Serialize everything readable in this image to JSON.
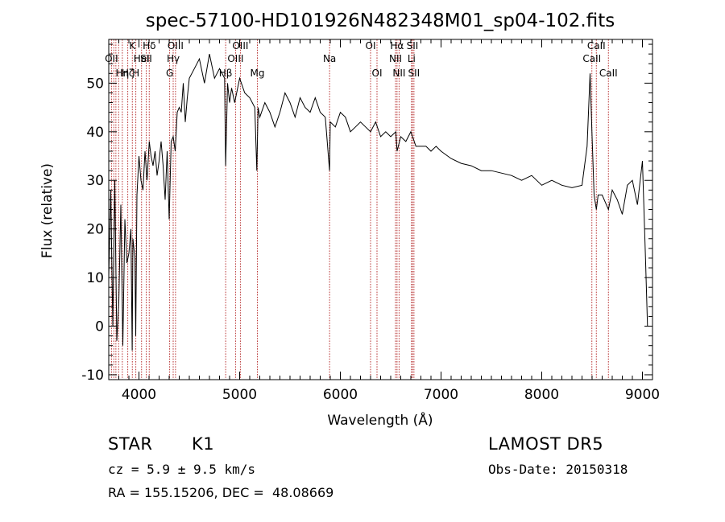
{
  "chart_data": {
    "type": "line",
    "title": "spec-57100-HD101926N482348M01_sp04-102.fits",
    "xlabel": "Wavelength (Å)",
    "ylabel": "Flux (relative)",
    "xlim": [
      3700,
      9100
    ],
    "ylim": [
      -11,
      59
    ],
    "x_ticks": [
      4000,
      5000,
      6000,
      7000,
      8000,
      9000
    ],
    "y_ticks": [
      -10,
      0,
      10,
      20,
      30,
      40,
      50
    ],
    "grid": false,
    "series": [
      {
        "x": [
          3700,
          3720,
          3740,
          3760,
          3780,
          3800,
          3820,
          3840,
          3860,
          3880,
          3900,
          3920,
          3933,
          3940,
          3960,
          3968,
          3980,
          4000,
          4020,
          4040,
          4060,
          4080,
          4102,
          4120,
          4140,
          4160,
          4180,
          4200,
          4220,
          4240,
          4260,
          4280,
          4300,
          4320,
          4340,
          4360,
          4380,
          4400,
          4420,
          4440,
          4460,
          4480,
          4500,
          4550,
          4600,
          4650,
          4700,
          4750,
          4800,
          4850,
          4861,
          4880,
          4900,
          4920,
          4950,
          5000,
          5050,
          5100,
          5150,
          5170,
          5183,
          5200,
          5250,
          5300,
          5350,
          5400,
          5450,
          5500,
          5550,
          5600,
          5650,
          5700,
          5750,
          5800,
          5850,
          5893,
          5900,
          5950,
          6000,
          6050,
          6100,
          6150,
          6200,
          6250,
          6300,
          6350,
          6400,
          6450,
          6500,
          6550,
          6563,
          6600,
          6650,
          6700,
          6750,
          6800,
          6850,
          6900,
          6950,
          7000,
          7100,
          7200,
          7300,
          7400,
          7500,
          7600,
          7700,
          7800,
          7900,
          8000,
          8100,
          8200,
          8300,
          8400,
          8450,
          8480,
          8498,
          8520,
          8542,
          8560,
          8600,
          8662,
          8700,
          8750,
          8800,
          8850,
          8900,
          8950,
          9000,
          9030,
          9050
        ],
        "y": [
          10,
          28,
          0,
          30,
          -3,
          5,
          25,
          -4,
          22,
          13,
          15,
          20,
          -5,
          18,
          14,
          -2,
          27,
          35,
          30,
          28,
          36,
          30,
          38,
          35,
          33,
          36,
          31,
          34,
          38,
          33,
          26,
          36,
          22,
          38,
          39,
          36,
          44,
          45,
          44,
          50,
          42,
          47,
          51,
          53,
          55,
          50,
          56,
          51,
          53,
          51,
          33,
          50,
          46,
          49,
          46,
          51,
          48,
          47,
          45,
          32,
          45,
          43,
          46,
          44,
          41,
          44,
          48,
          46,
          43,
          47,
          45,
          44,
          47,
          44,
          43,
          32,
          42,
          41,
          44,
          43,
          40,
          41,
          42,
          41,
          40,
          42,
          39,
          40,
          39,
          40,
          36,
          39,
          38,
          40,
          37,
          37,
          37,
          36,
          37,
          36,
          34.5,
          33.5,
          33,
          32,
          32,
          31.5,
          31,
          30,
          31,
          29,
          30,
          29,
          28.5,
          29,
          37,
          52,
          40,
          27,
          24,
          27,
          27,
          24,
          28,
          26,
          23,
          29,
          30,
          25,
          34,
          14,
          0
        ]
      }
    ],
    "lines": [
      {
        "wl": 3727,
        "label": "OII",
        "row": 1
      },
      {
        "wl": 3750,
        "label": "",
        "row": 0
      },
      {
        "wl": 3771,
        "label": "",
        "row": 0
      },
      {
        "wl": 3798,
        "label": "",
        "row": 0
      },
      {
        "wl": 3835,
        "label": "Hη",
        "row": 2
      },
      {
        "wl": 3889,
        "label": "Hζ",
        "row": 2
      },
      {
        "wl": 3934,
        "label": "K",
        "row": 0
      },
      {
        "wl": 3969,
        "label": "H",
        "row": 2
      },
      {
        "wl": 4026,
        "label": "HeI",
        "row": 1
      },
      {
        "wl": 4072,
        "label": "SII",
        "row": 1
      },
      {
        "wl": 4102,
        "label": "Hδ",
        "row": 0
      },
      {
        "wl": 4305,
        "label": "G",
        "row": 2
      },
      {
        "wl": 4340,
        "label": "Hγ",
        "row": 1
      },
      {
        "wl": 4363,
        "label": "OIII",
        "row": 0
      },
      {
        "wl": 4861,
        "label": "Hβ",
        "row": 2
      },
      {
        "wl": 4959,
        "label": "OIII",
        "row": 1
      },
      {
        "wl": 5007,
        "label": "OIII",
        "row": 0
      },
      {
        "wl": 5176,
        "label": "Mg",
        "row": 2
      },
      {
        "wl": 5893,
        "label": "Na",
        "row": 1
      },
      {
        "wl": 6300,
        "label": "OI",
        "row": 0
      },
      {
        "wl": 6364,
        "label": "OI",
        "row": 2
      },
      {
        "wl": 6548,
        "label": "NII",
        "row": 1
      },
      {
        "wl": 6563,
        "label": "Hα",
        "row": 0
      },
      {
        "wl": 6583,
        "label": "NII",
        "row": 2
      },
      {
        "wl": 6707,
        "label": "Li",
        "row": 1
      },
      {
        "wl": 6716,
        "label": "SII",
        "row": 0
      },
      {
        "wl": 6731,
        "label": "SII",
        "row": 2
      },
      {
        "wl": 8498,
        "label": "CaII",
        "row": 1
      },
      {
        "wl": 8542,
        "label": "CaII",
        "row": 0
      },
      {
        "wl": 8662,
        "label": "CaII",
        "row": 2
      }
    ]
  },
  "info": {
    "object_type": "STAR",
    "subclass": "K1",
    "survey": "LAMOST DR5",
    "cz_line": "cz = 5.9 ± 9.5 km/s",
    "obs_date": "Obs-Date: 20150318",
    "coords": "RA = 155.15206, DEC =  48.08669"
  },
  "colors": {
    "spectrum": "#000000",
    "line_markers": "#b22222",
    "axes": "#000000",
    "background": "#ffffff"
  }
}
